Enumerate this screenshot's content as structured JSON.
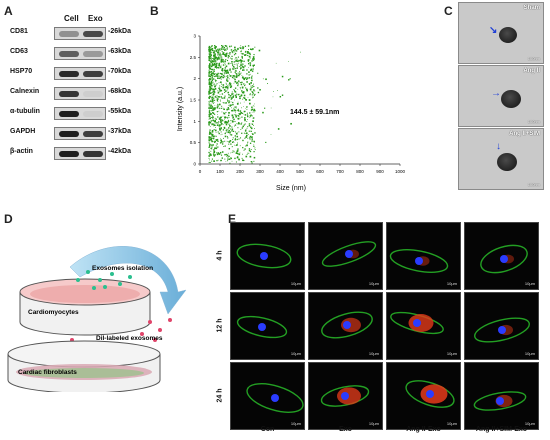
{
  "panels": {
    "a": "A",
    "b": "B",
    "c": "C",
    "d": "D",
    "e": "E"
  },
  "panel_a": {
    "columns": [
      "Cell",
      "Exo"
    ],
    "rows": [
      {
        "name": "CD81",
        "kda": "-26kDa",
        "cell": 0.35,
        "exo": 0.7
      },
      {
        "name": "CD63",
        "kda": "-63kDa",
        "cell": 0.6,
        "exo": 0.3
      },
      {
        "name": "HSP70",
        "kda": "-70kDa",
        "cell": 0.85,
        "exo": 0.75
      },
      {
        "name": "Calnexin",
        "kda": "-68kDa",
        "cell": 0.8,
        "exo": 0.05
      },
      {
        "name": "α-tubulin",
        "kda": "-55kDa",
        "cell": 0.9,
        "exo": 0.05
      },
      {
        "name": "GAPDH",
        "kda": "-37kDa",
        "cell": 0.9,
        "exo": 0.75
      },
      {
        "name": "β-actin",
        "kda": "-42kDa",
        "cell": 0.9,
        "exo": 0.8
      }
    ]
  },
  "chart_data": {
    "type": "scatter",
    "ylabel": "Intensity (a.u.)",
    "xlabel": "Size (nm)",
    "xlim": [
      0,
      1000
    ],
    "ylim": [
      0,
      3.0
    ],
    "xticks": [
      0,
      100,
      200,
      300,
      400,
      500,
      600,
      700,
      800,
      900,
      1000
    ],
    "yticks": [
      0,
      0.5,
      1.0,
      1.5,
      2.0,
      2.5,
      3.0
    ],
    "annotation": "144.5 ± 59.1nm",
    "color": "#2a9a1a"
  },
  "panel_c": {
    "images": [
      {
        "label": "Sham",
        "scale": "100nm"
      },
      {
        "label": "Ang II",
        "scale": "100nm"
      },
      {
        "label": "Ang II+SIM",
        "scale": "100nm"
      }
    ]
  },
  "panel_d": {
    "exosomes_isolation": "Exosomes isolation",
    "cardiomyocytes": "Cardiomyocytes",
    "dil_labeled": "Dil-labeled exosomes",
    "cardiac_fibroblasts": "Cardiac fibroblasts"
  },
  "panel_e": {
    "rows": [
      "4 h",
      "12 h",
      "24 h"
    ],
    "columns": [
      "Con",
      "Exo",
      "Ang II-Exo",
      "Ang II+SIM-Exo"
    ],
    "scale_text": "10μm",
    "red_levels": [
      [
        0,
        0.2,
        0.25,
        0.2
      ],
      [
        0,
        0.6,
        0.85,
        0.3
      ],
      [
        0,
        0.8,
        0.95,
        0.45
      ]
    ]
  }
}
